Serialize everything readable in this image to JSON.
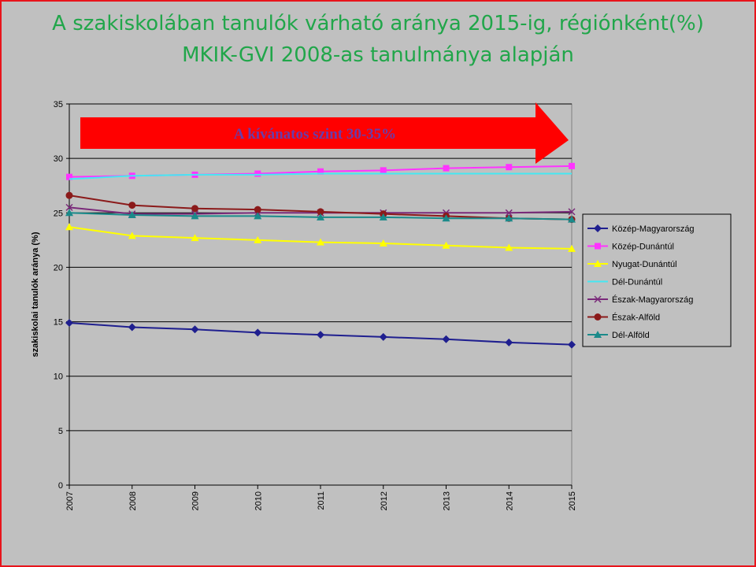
{
  "title_line1": "A szakiskolában tanulók várható aránya 2015-ig, régiónként(%)",
  "title_line2": "MKIK-GVI 2008-as tanulmánya alapján",
  "colors": {
    "title": "#21a64a",
    "frame": "#e8141b",
    "background": "#c0c0c0",
    "arrow": "#ff0000",
    "arrow_text": "#6a3ca8"
  },
  "chart_data": {
    "type": "line",
    "ylabel": "szakiskolai tanulók aránya (%)",
    "xlabel": "",
    "x": [
      "2007",
      "2008",
      "2009",
      "2010",
      "2011",
      "2012",
      "2013",
      "2014",
      "2015"
    ],
    "ylim": [
      0,
      35
    ],
    "yticks": [
      0,
      5,
      10,
      15,
      20,
      25,
      30,
      35
    ],
    "grid": true,
    "legend_position": "right",
    "annotation": "A kívánatos szint 30-35%",
    "series": [
      {
        "name": "Közép-Magyarország",
        "color": "#1f1f8f",
        "marker": "diamond",
        "values": [
          14.9,
          14.5,
          14.3,
          14.0,
          13.8,
          13.6,
          13.4,
          13.1,
          12.9
        ]
      },
      {
        "name": "Közép-Dunántúl",
        "color": "#ff33ff",
        "marker": "square",
        "values": [
          28.3,
          28.4,
          28.5,
          28.6,
          28.8,
          28.9,
          29.1,
          29.2,
          29.3
        ]
      },
      {
        "name": "Nyugat-Dunántúl",
        "color": "#ffff00",
        "marker": "triangle",
        "values": [
          23.7,
          22.9,
          22.7,
          22.5,
          22.3,
          22.2,
          22.0,
          21.8,
          21.7
        ]
      },
      {
        "name": "Dél-Dunántúl",
        "color": "#44e8f2",
        "marker": "none",
        "values": [
          28.1,
          28.4,
          28.5,
          28.5,
          28.6,
          28.6,
          28.6,
          28.6,
          28.6
        ]
      },
      {
        "name": "Észak-Magyarország",
        "color": "#7a2a7a",
        "marker": "x",
        "values": [
          25.5,
          24.9,
          24.9,
          25.0,
          25.0,
          25.0,
          25.0,
          25.0,
          25.1
        ]
      },
      {
        "name": "Észak-Alföld",
        "color": "#8b1a1a",
        "marker": "circle",
        "values": [
          26.6,
          25.7,
          25.4,
          25.3,
          25.1,
          24.9,
          24.7,
          24.5,
          24.4
        ]
      },
      {
        "name": "Dél-Alföld",
        "color": "#1a8a8a",
        "marker": "triangle",
        "values": [
          25.0,
          24.8,
          24.7,
          24.7,
          24.6,
          24.6,
          24.5,
          24.5,
          24.4
        ]
      }
    ]
  }
}
